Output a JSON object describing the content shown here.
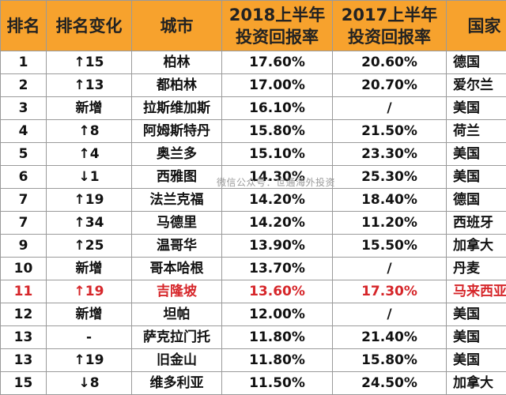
{
  "table": {
    "headers": {
      "rank": "排名",
      "change": "排名变化",
      "city": "城市",
      "y2018_line1": "2018上半年",
      "y2018_line2": "投资回报率",
      "y2017_line1": "2017上半年",
      "y2017_line2": "投资回报率",
      "country": "国家"
    },
    "rows": [
      {
        "rank": "1",
        "change": "↑15",
        "city": "柏林",
        "roi2018": "17.60%",
        "roi2017": "20.60%",
        "country": "德国"
      },
      {
        "rank": "2",
        "change": "↑13",
        "city": "都柏林",
        "roi2018": "17.00%",
        "roi2017": "20.70%",
        "country": "爱尔兰"
      },
      {
        "rank": "3",
        "change": "新增",
        "city": "拉斯维加斯",
        "roi2018": "16.10%",
        "roi2017": "/",
        "country": "美国"
      },
      {
        "rank": "4",
        "change": "↑8",
        "city": "阿姆斯特丹",
        "roi2018": "15.80%",
        "roi2017": "21.50%",
        "country": "荷兰"
      },
      {
        "rank": "5",
        "change": "↑4",
        "city": "奥兰多",
        "roi2018": "15.10%",
        "roi2017": "23.30%",
        "country": "美国"
      },
      {
        "rank": "6",
        "change": "↓1",
        "city": "西雅图",
        "roi2018": "14.30%",
        "roi2017": "25.30%",
        "country": "美国"
      },
      {
        "rank": "7",
        "change": "↑19",
        "city": "法兰克福",
        "roi2018": "14.20%",
        "roi2017": "18.40%",
        "country": "德国"
      },
      {
        "rank": "7",
        "change": "↑34",
        "city": "马德里",
        "roi2018": "14.20%",
        "roi2017": "11.20%",
        "country": "西班牙"
      },
      {
        "rank": "9",
        "change": "↑25",
        "city": "温哥华",
        "roi2018": "13.90%",
        "roi2017": "15.50%",
        "country": "加拿大"
      },
      {
        "rank": "10",
        "change": "新增",
        "city": "哥本哈根",
        "roi2018": "13.70%",
        "roi2017": "/",
        "country": "丹麦"
      },
      {
        "rank": "11",
        "change": "↑19",
        "city": "吉隆坡",
        "roi2018": "13.60%",
        "roi2017": "17.30%",
        "country": "马来西亚",
        "highlight": true
      },
      {
        "rank": "12",
        "change": "新增",
        "city": "坦帕",
        "roi2018": "12.00%",
        "roi2017": "/",
        "country": "美国"
      },
      {
        "rank": "13",
        "change": "-",
        "city": "萨克拉门托",
        "roi2018": "11.80%",
        "roi2017": "21.40%",
        "country": "美国"
      },
      {
        "rank": "13",
        "change": "↑19",
        "city": "旧金山",
        "roi2018": "11.80%",
        "roi2017": "15.80%",
        "country": "美国"
      },
      {
        "rank": "15",
        "change": "↓8",
        "city": "维多利亚",
        "roi2018": "11.50%",
        "roi2017": "24.50%",
        "country": "加拿大"
      }
    ]
  },
  "watermark": "微信公众号：世通海外投资",
  "colors": {
    "header_bg": "#f7a22d",
    "highlight_text": "#d6262a",
    "border": "#9a9a9a"
  }
}
